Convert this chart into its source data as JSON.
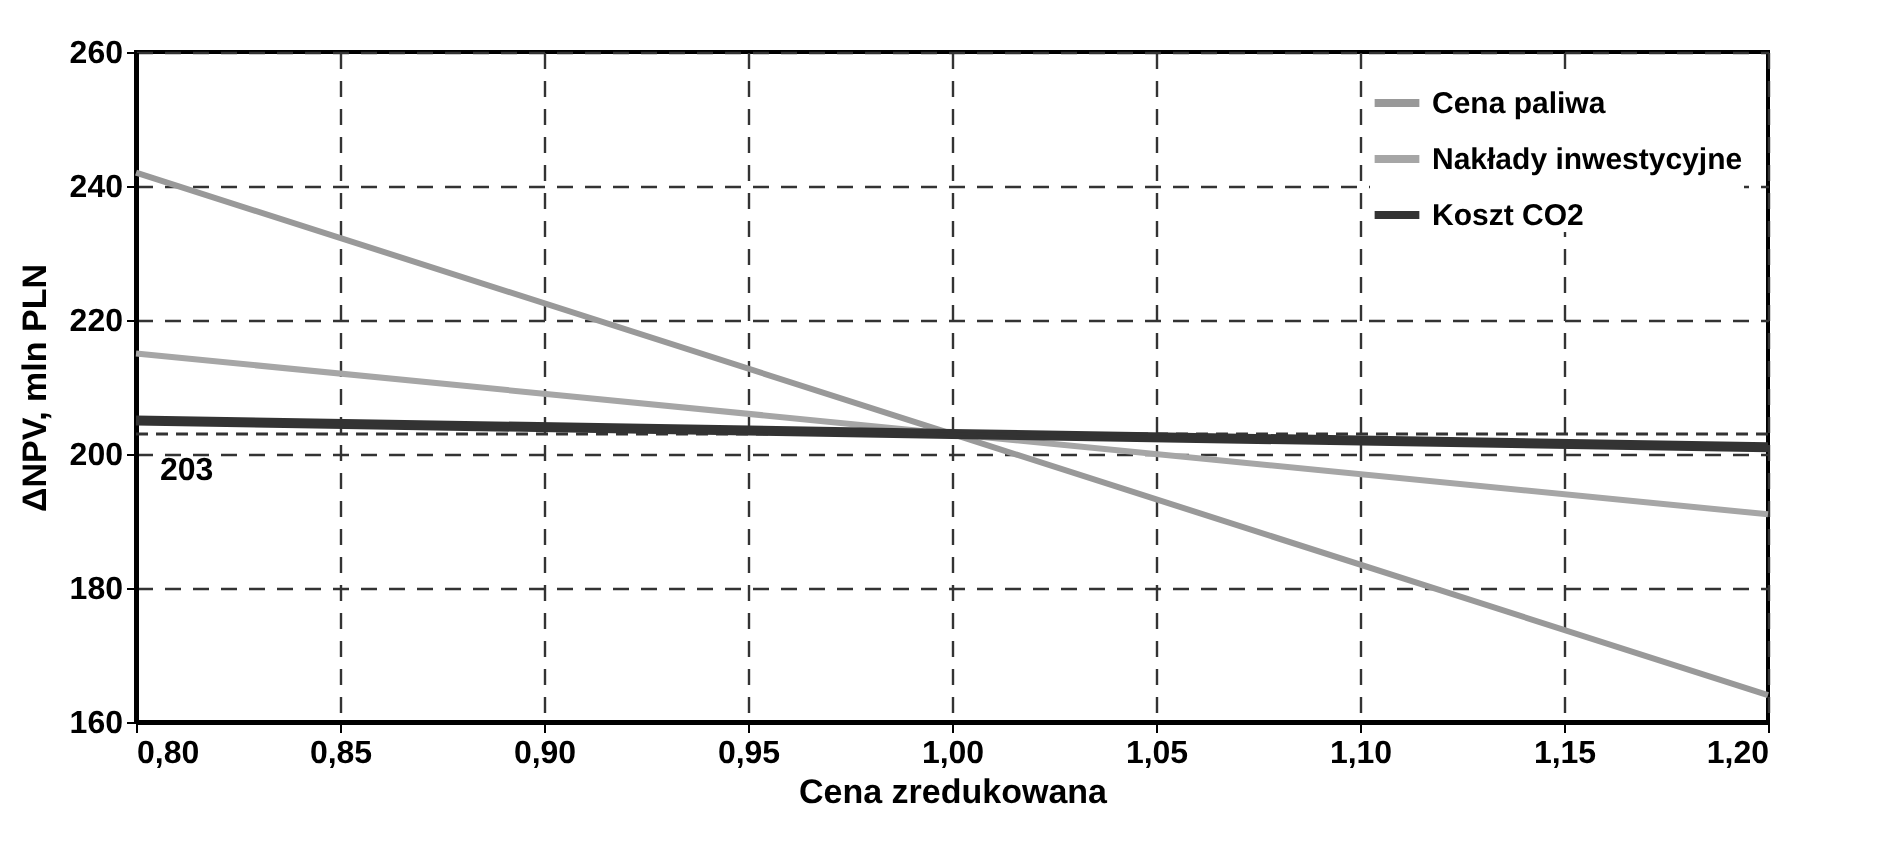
{
  "chart_data": {
    "type": "line",
    "xlabel": "Cena zredukowana",
    "ylabel": "ΔNPV, mln PLN",
    "x": [
      0.8,
      1.0,
      1.2
    ],
    "series": [
      {
        "name": "Cena paliwa",
        "color": "#999999",
        "values": [
          242,
          203,
          164
        ]
      },
      {
        "name": "Nakłady inwestycyjne",
        "color": "#a6a6a6",
        "values": [
          215,
          203,
          191
        ]
      },
      {
        "name": "Koszt CO2",
        "color": "#333333",
        "values": [
          205,
          203,
          201
        ]
      }
    ],
    "xlim": [
      0.8,
      1.2
    ],
    "xticks": [
      {
        "value": 0.8,
        "label": "0,80"
      },
      {
        "value": 0.85,
        "label": "0,85"
      },
      {
        "value": 0.9,
        "label": "0,90"
      },
      {
        "value": 0.95,
        "label": "0,95"
      },
      {
        "value": 1.0,
        "label": "1,00"
      },
      {
        "value": 1.05,
        "label": "1,05"
      },
      {
        "value": 1.1,
        "label": "1,10"
      },
      {
        "value": 1.15,
        "label": "1,15"
      },
      {
        "value": 1.2,
        "label": "1,20"
      }
    ],
    "ylim": [
      160,
      260
    ],
    "yticks": [
      160,
      180,
      200,
      220,
      240,
      260
    ],
    "ref_lines": [
      {
        "axis": "y",
        "value": 203,
        "label": "203",
        "color": "#333333",
        "line_style": "dashed"
      }
    ],
    "grid": true,
    "legend": "top right",
    "marker": "none",
    "line_style": "solid"
  }
}
